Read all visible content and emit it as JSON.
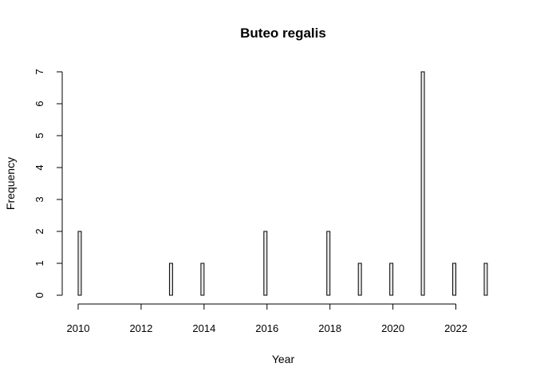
{
  "chart_data": {
    "type": "bar",
    "title": "Buteo regalis",
    "xlabel": "Year",
    "ylabel": "Frequency",
    "x_ticks": [
      2010,
      2012,
      2014,
      2016,
      2018,
      2020,
      2022
    ],
    "y_ticks": [
      0,
      1,
      2,
      3,
      4,
      5,
      6,
      7
    ],
    "xlim": [
      2010,
      2023
    ],
    "ylim": [
      0,
      7
    ],
    "bins": [
      2010,
      2010.1,
      2010.2,
      2010.3,
      2010.4,
      2010.5,
      2010.6,
      2010.7,
      2010.8,
      2010.9,
      2011,
      2011.1,
      2011.2,
      2011.3,
      2011.4,
      2011.5,
      2011.6,
      2011.7,
      2011.8,
      2011.9,
      2012,
      2012.1,
      2012.2,
      2012.3,
      2012.4,
      2012.5,
      2012.6,
      2012.7,
      2012.8,
      2012.9,
      2013,
      2013.1,
      2013.2,
      2013.3,
      2013.4,
      2013.5,
      2013.6,
      2013.7,
      2013.8,
      2013.9,
      2014,
      2014.1,
      2014.2,
      2014.3,
      2014.4,
      2014.5,
      2014.6,
      2014.7,
      2014.8,
      2014.9,
      2015,
      2015.1,
      2015.2,
      2015.3,
      2015.4,
      2015.5,
      2015.6,
      2015.7,
      2015.8,
      2015.9,
      2016,
      2016.1,
      2016.2,
      2016.3,
      2016.4,
      2016.5,
      2016.6,
      2016.7,
      2016.8,
      2016.9,
      2017,
      2017.1,
      2017.2,
      2017.3,
      2017.4,
      2017.5,
      2017.6,
      2017.7,
      2017.8,
      2017.9,
      2018,
      2018.1,
      2018.2,
      2018.3,
      2018.4,
      2018.5,
      2018.6,
      2018.7,
      2018.8,
      2018.9,
      2019,
      2019.1,
      2019.2,
      2019.3,
      2019.4,
      2019.5,
      2019.6,
      2019.7,
      2019.8,
      2019.9,
      2020,
      2020.1,
      2020.2,
      2020.3,
      2020.4,
      2020.5,
      2020.6,
      2020.7,
      2020.8,
      2020.9,
      2021,
      2021.1,
      2021.2,
      2021.3,
      2021.4,
      2021.5,
      2021.6,
      2021.7,
      2021.8,
      2021.9,
      2022,
      2022.1,
      2022.2,
      2022.3,
      2022.4,
      2022.5,
      2022.6,
      2022.7,
      2022.8,
      2022.9,
      2023
    ],
    "counts": [
      2,
      0,
      0,
      0,
      0,
      0,
      0,
      0,
      0,
      0,
      0,
      0,
      0,
      0,
      0,
      0,
      0,
      0,
      0,
      0,
      0,
      0,
      0,
      0,
      0,
      0,
      0,
      0,
      0,
      1,
      0,
      0,
      0,
      0,
      0,
      0,
      0,
      0,
      0,
      1,
      0,
      0,
      0,
      0,
      0,
      0,
      0,
      0,
      0,
      0,
      0,
      0,
      0,
      0,
      0,
      0,
      0,
      0,
      0,
      2,
      0,
      0,
      0,
      0,
      0,
      0,
      0,
      0,
      0,
      0,
      0,
      0,
      0,
      0,
      0,
      0,
      0,
      0,
      0,
      2,
      0,
      0,
      0,
      0,
      0,
      0,
      0,
      0,
      0,
      1,
      0,
      0,
      0,
      0,
      0,
      0,
      0,
      0,
      0,
      1,
      0,
      0,
      0,
      0,
      0,
      0,
      0,
      0,
      0,
      7,
      0,
      0,
      0,
      0,
      0,
      0,
      0,
      0,
      0,
      1,
      0,
      0,
      0,
      0,
      0,
      0,
      0,
      0,
      0,
      1
    ],
    "colors": {
      "bar_fill": "#e6e6e6",
      "bar_stroke": "#000000"
    }
  }
}
